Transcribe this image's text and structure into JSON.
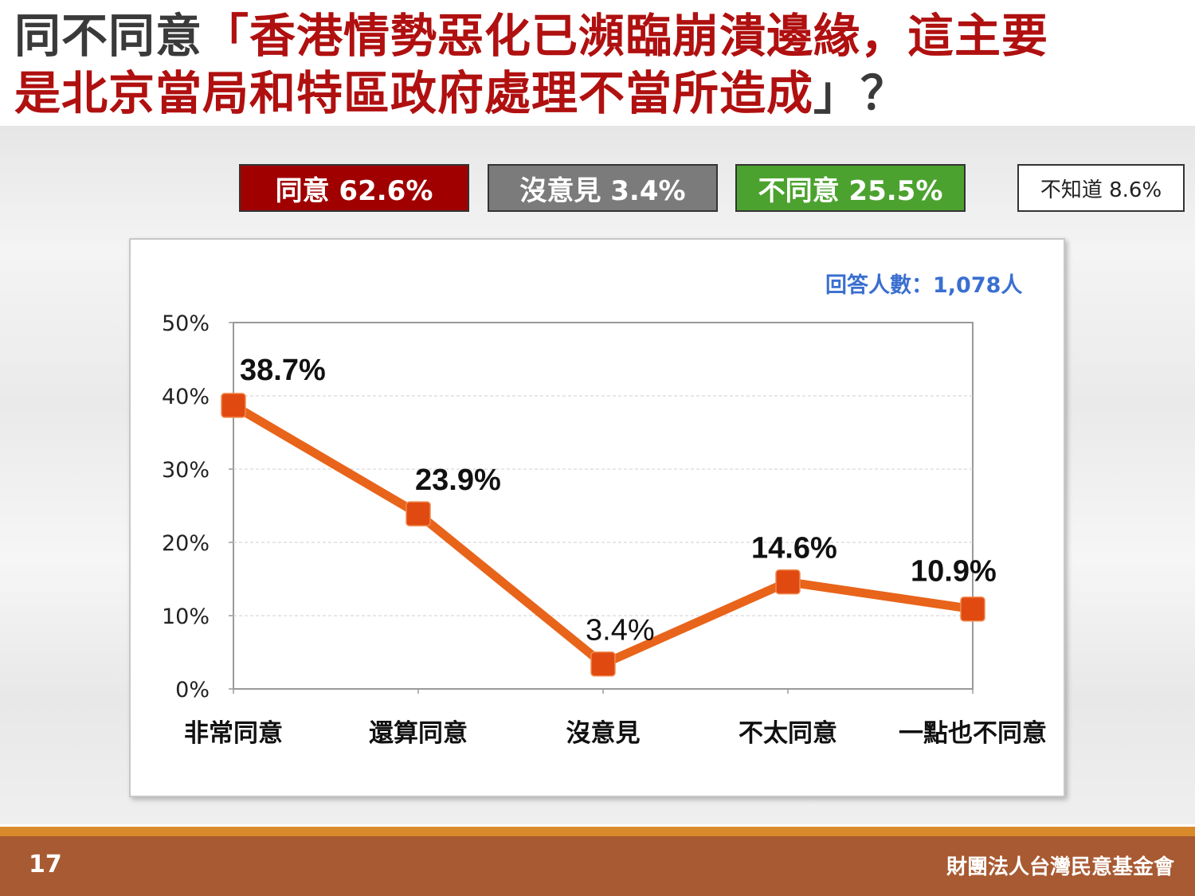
{
  "title": {
    "line1_prefix": "同不同意",
    "line1_main": "「香港情勢惡化已瀕臨崩潰邊緣，這主要",
    "line2_main": "是北京當局和特區政府處理不當所造成",
    "line2_suffix": "」？"
  },
  "legend": {
    "agree": "同意 62.6%",
    "neutral": "沒意見 3.4%",
    "disagree": "不同意 25.5%",
    "unknown": "不知道 8.6%"
  },
  "colors": {
    "agree": "#a00000",
    "neutral": "#7b7b7b",
    "disagree": "#4ca22f",
    "line": "#e8641a",
    "marker": "#e04a10"
  },
  "sample_note": "回答人數：1,078人",
  "chart_data": {
    "type": "line",
    "categories": [
      "非常同意",
      "還算同意",
      "沒意見",
      "不太同意",
      "一點也不同意"
    ],
    "series": [
      {
        "values": [
          38.7,
          23.9,
          3.4,
          14.6,
          10.9
        ]
      }
    ],
    "data_labels": [
      "38.7%",
      "23.9%",
      "3.4%",
      "14.6%",
      "10.9%"
    ],
    "y_ticks": [
      "0%",
      "10%",
      "20%",
      "30%",
      "40%",
      "50%"
    ],
    "ylim": [
      0,
      50
    ],
    "grid": true
  },
  "footer": {
    "page": "17",
    "org": "財團法人台灣民意基金會"
  }
}
